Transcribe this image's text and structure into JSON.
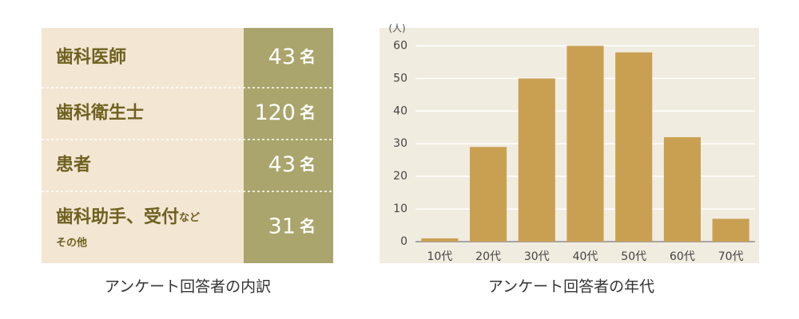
{
  "table": {
    "rows": [
      {
        "label": "歯科医師",
        "count": 43,
        "unit": "名"
      },
      {
        "label": "歯科衛生士",
        "count": 120,
        "unit": "名"
      },
      {
        "label": "患者",
        "count": 43,
        "unit": "名"
      },
      {
        "label": "歯科助手、受付",
        "label_small": "など",
        "label_sub": "その他",
        "count": 31,
        "unit": "名"
      }
    ],
    "caption": "アンケート回答者の内訳"
  },
  "chart_data": {
    "type": "bar",
    "caption": "アンケート回答者の年代",
    "ylabel": "(人)",
    "categories": [
      "10代",
      "20代",
      "30代",
      "40代",
      "50代",
      "60代",
      "70代"
    ],
    "values": [
      1,
      29,
      50,
      60,
      58,
      32,
      7
    ],
    "color": "#c9a052",
    "ylim": [
      0,
      65
    ],
    "yticks": [
      0,
      10,
      20,
      30,
      40,
      50,
      60
    ],
    "grid": true
  }
}
